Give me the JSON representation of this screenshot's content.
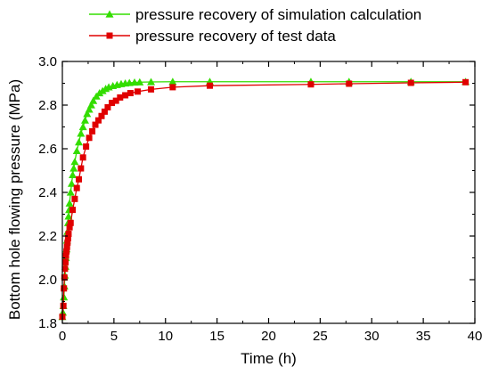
{
  "chart_data": {
    "type": "line",
    "title": "",
    "xlabel": "Time (h)",
    "ylabel": "Bottom hole flowing pressure (MPa)",
    "xlim": [
      0,
      40
    ],
    "ylim": [
      1.8,
      3.0
    ],
    "x_ticks": [
      0,
      5,
      10,
      15,
      20,
      25,
      30,
      35,
      40
    ],
    "y_ticks": [
      1.8,
      2.0,
      2.2,
      2.4,
      2.6,
      2.8,
      3.0
    ],
    "x_tick_labels": [
      "0",
      "5",
      "10",
      "15",
      "20",
      "25",
      "30",
      "35",
      "40"
    ],
    "y_tick_labels": [
      "1.8",
      "2.0",
      "2.2",
      "2.4",
      "2.6",
      "2.8",
      "3.0"
    ],
    "grid": false,
    "legend_position": "top",
    "series": [
      {
        "name": "pressure recovery of simulation calculation",
        "color": "#33dd00",
        "marker": "triangle",
        "x": [
          0.0,
          0.05,
          0.1,
          0.15,
          0.2,
          0.25,
          0.3,
          0.35,
          0.4,
          0.45,
          0.5,
          0.55,
          0.6,
          0.65,
          0.7,
          0.8,
          0.9,
          1.0,
          1.1,
          1.2,
          1.4,
          1.6,
          1.8,
          2.0,
          2.2,
          2.4,
          2.6,
          2.8,
          3.0,
          3.3,
          3.6,
          3.9,
          4.2,
          4.5,
          4.9,
          5.3,
          5.7,
          6.1,
          6.5,
          7.0,
          7.5,
          8.6,
          10.7,
          14.3,
          24.1,
          27.8,
          33.8,
          39.1
        ],
        "y": [
          1.83,
          1.85,
          1.88,
          1.92,
          1.97,
          2.02,
          2.06,
          2.1,
          2.14,
          2.18,
          2.22,
          2.26,
          2.29,
          2.32,
          2.35,
          2.4,
          2.44,
          2.48,
          2.51,
          2.54,
          2.59,
          2.63,
          2.67,
          2.7,
          2.73,
          2.76,
          2.78,
          2.8,
          2.82,
          2.84,
          2.855,
          2.865,
          2.875,
          2.882,
          2.888,
          2.893,
          2.897,
          2.9,
          2.902,
          2.904,
          2.905,
          2.906,
          2.907,
          2.907,
          2.907,
          2.907,
          2.907,
          2.907
        ]
      },
      {
        "name": "pressure recovery of test data",
        "color": "#e00000",
        "marker": "square",
        "x": [
          0.0,
          0.1,
          0.15,
          0.2,
          0.25,
          0.3,
          0.35,
          0.4,
          0.45,
          0.5,
          0.55,
          0.6,
          0.7,
          0.8,
          1.0,
          1.2,
          1.4,
          1.6,
          1.8,
          2.0,
          2.3,
          2.6,
          2.9,
          3.2,
          3.5,
          3.8,
          4.1,
          4.4,
          4.8,
          5.2,
          5.6,
          6.1,
          6.6,
          7.3,
          8.6,
          10.7,
          14.3,
          24.1,
          27.8,
          33.8,
          39.1
        ],
        "y": [
          1.83,
          1.88,
          1.96,
          2.01,
          2.05,
          2.08,
          2.11,
          2.13,
          2.15,
          2.17,
          2.19,
          2.21,
          2.24,
          2.26,
          2.32,
          2.37,
          2.42,
          2.46,
          2.51,
          2.56,
          2.61,
          2.65,
          2.68,
          2.71,
          2.73,
          2.75,
          2.77,
          2.79,
          2.81,
          2.82,
          2.835,
          2.845,
          2.855,
          2.862,
          2.872,
          2.882,
          2.889,
          2.895,
          2.898,
          2.902,
          2.905
        ]
      }
    ]
  }
}
